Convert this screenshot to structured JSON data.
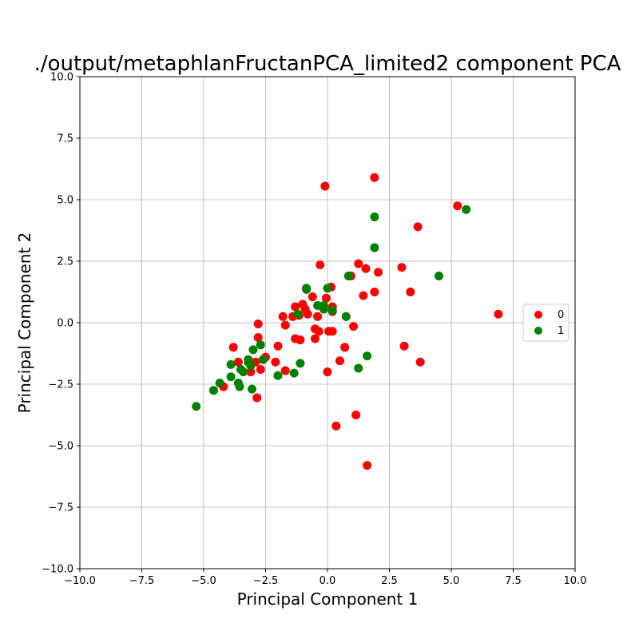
{
  "chart_data": {
    "type": "scatter",
    "title": "./output/metaphlanFructanPCA_limited2 component PCA",
    "xlabel": "Principal Component 1",
    "ylabel": "Principal Component 2",
    "xlim": [
      -10,
      10
    ],
    "ylim": [
      -10,
      10
    ],
    "xticks": [
      -10,
      -7.5,
      -5,
      -2.5,
      0,
      2.5,
      5,
      7.5,
      10
    ],
    "yticks": [
      -10,
      -7.5,
      -5,
      -2.5,
      0,
      2.5,
      5,
      7.5,
      10
    ],
    "xtick_labels": [
      "−10.0",
      "−7.5",
      "−5.0",
      "−2.5",
      "0.0",
      "2.5",
      "5.0",
      "7.5",
      "10.0"
    ],
    "ytick_labels": [
      "−10.0",
      "−7.5",
      "−5.0",
      "−2.5",
      "0.0",
      "2.5",
      "5.0",
      "7.5",
      "10.0"
    ],
    "grid": true,
    "legend_position": "right",
    "series": [
      {
        "name": "0",
        "color": "#ff0000",
        "points": [
          [
            -0.1,
            5.55
          ],
          [
            1.9,
            5.9
          ],
          [
            5.25,
            4.75
          ],
          [
            3.65,
            3.9
          ],
          [
            -0.3,
            2.35
          ],
          [
            1.25,
            2.4
          ],
          [
            1.55,
            2.2
          ],
          [
            2.05,
            2.05
          ],
          [
            3.0,
            2.25
          ],
          [
            0.95,
            1.9
          ],
          [
            0.15,
            1.45
          ],
          [
            1.45,
            1.1
          ],
          [
            1.9,
            1.25
          ],
          [
            3.35,
            1.25
          ],
          [
            6.9,
            0.35
          ],
          [
            -0.6,
            1.05
          ],
          [
            -0.05,
            1.0
          ],
          [
            -1.0,
            0.75
          ],
          [
            -1.3,
            0.65
          ],
          [
            -0.9,
            0.55
          ],
          [
            -1.15,
            0.3
          ],
          [
            -1.4,
            0.25
          ],
          [
            -1.8,
            0.25
          ],
          [
            -0.8,
            0.35
          ],
          [
            -0.4,
            0.25
          ],
          [
            0.2,
            0.65
          ],
          [
            0.2,
            0.45
          ],
          [
            -1.7,
            -0.1
          ],
          [
            -2.8,
            -0.05
          ],
          [
            -0.5,
            -0.25
          ],
          [
            -0.35,
            -0.35
          ],
          [
            0.05,
            -0.35
          ],
          [
            0.2,
            -0.35
          ],
          [
            1.05,
            -0.15
          ],
          [
            -1.3,
            -0.65
          ],
          [
            -1.1,
            -0.7
          ],
          [
            -0.5,
            -0.65
          ],
          [
            -2.8,
            -0.6
          ],
          [
            -3.8,
            -1.0
          ],
          [
            -2.0,
            -0.95
          ],
          [
            0.7,
            -1.0
          ],
          [
            3.1,
            -0.95
          ],
          [
            -2.5,
            -1.4
          ],
          [
            -3.6,
            -1.6
          ],
          [
            -2.9,
            -1.6
          ],
          [
            -2.1,
            -1.6
          ],
          [
            0.5,
            -1.55
          ],
          [
            3.75,
            -1.6
          ],
          [
            -3.1,
            -2.0
          ],
          [
            -2.7,
            -1.9
          ],
          [
            -1.7,
            -1.95
          ],
          [
            0.0,
            -2.0
          ],
          [
            -4.2,
            -2.6
          ],
          [
            -2.85,
            -3.05
          ],
          [
            1.15,
            -3.75
          ],
          [
            0.35,
            -4.2
          ],
          [
            1.6,
            -5.8
          ]
        ]
      },
      {
        "name": "1",
        "color": "#008000",
        "points": [
          [
            5.6,
            4.6
          ],
          [
            1.9,
            4.3
          ],
          [
            1.9,
            3.05
          ],
          [
            4.5,
            1.9
          ],
          [
            0.85,
            1.9
          ],
          [
            -0.85,
            1.4
          ],
          [
            -0.85,
            1.35
          ],
          [
            0.0,
            1.4
          ],
          [
            -0.4,
            0.7
          ],
          [
            -0.15,
            0.7
          ],
          [
            -0.15,
            0.55
          ],
          [
            0.2,
            0.5
          ],
          [
            -1.2,
            0.35
          ],
          [
            0.75,
            0.25
          ],
          [
            -2.7,
            -0.9
          ],
          [
            -3.0,
            -1.1
          ],
          [
            -3.2,
            -1.5
          ],
          [
            -3.2,
            -1.6
          ],
          [
            -2.6,
            -1.5
          ],
          [
            -3.1,
            -1.75
          ],
          [
            -3.9,
            -1.7
          ],
          [
            -3.5,
            -1.9
          ],
          [
            -3.4,
            -2.0
          ],
          [
            -1.1,
            -1.65
          ],
          [
            1.6,
            -1.35
          ],
          [
            1.25,
            -1.85
          ],
          [
            -1.35,
            -2.05
          ],
          [
            -2.0,
            -2.15
          ],
          [
            -3.9,
            -2.2
          ],
          [
            -4.35,
            -2.45
          ],
          [
            -3.6,
            -2.45
          ],
          [
            -3.55,
            -2.6
          ],
          [
            -3.05,
            -2.7
          ],
          [
            -4.6,
            -2.75
          ],
          [
            -5.3,
            -3.4
          ]
        ]
      }
    ]
  }
}
